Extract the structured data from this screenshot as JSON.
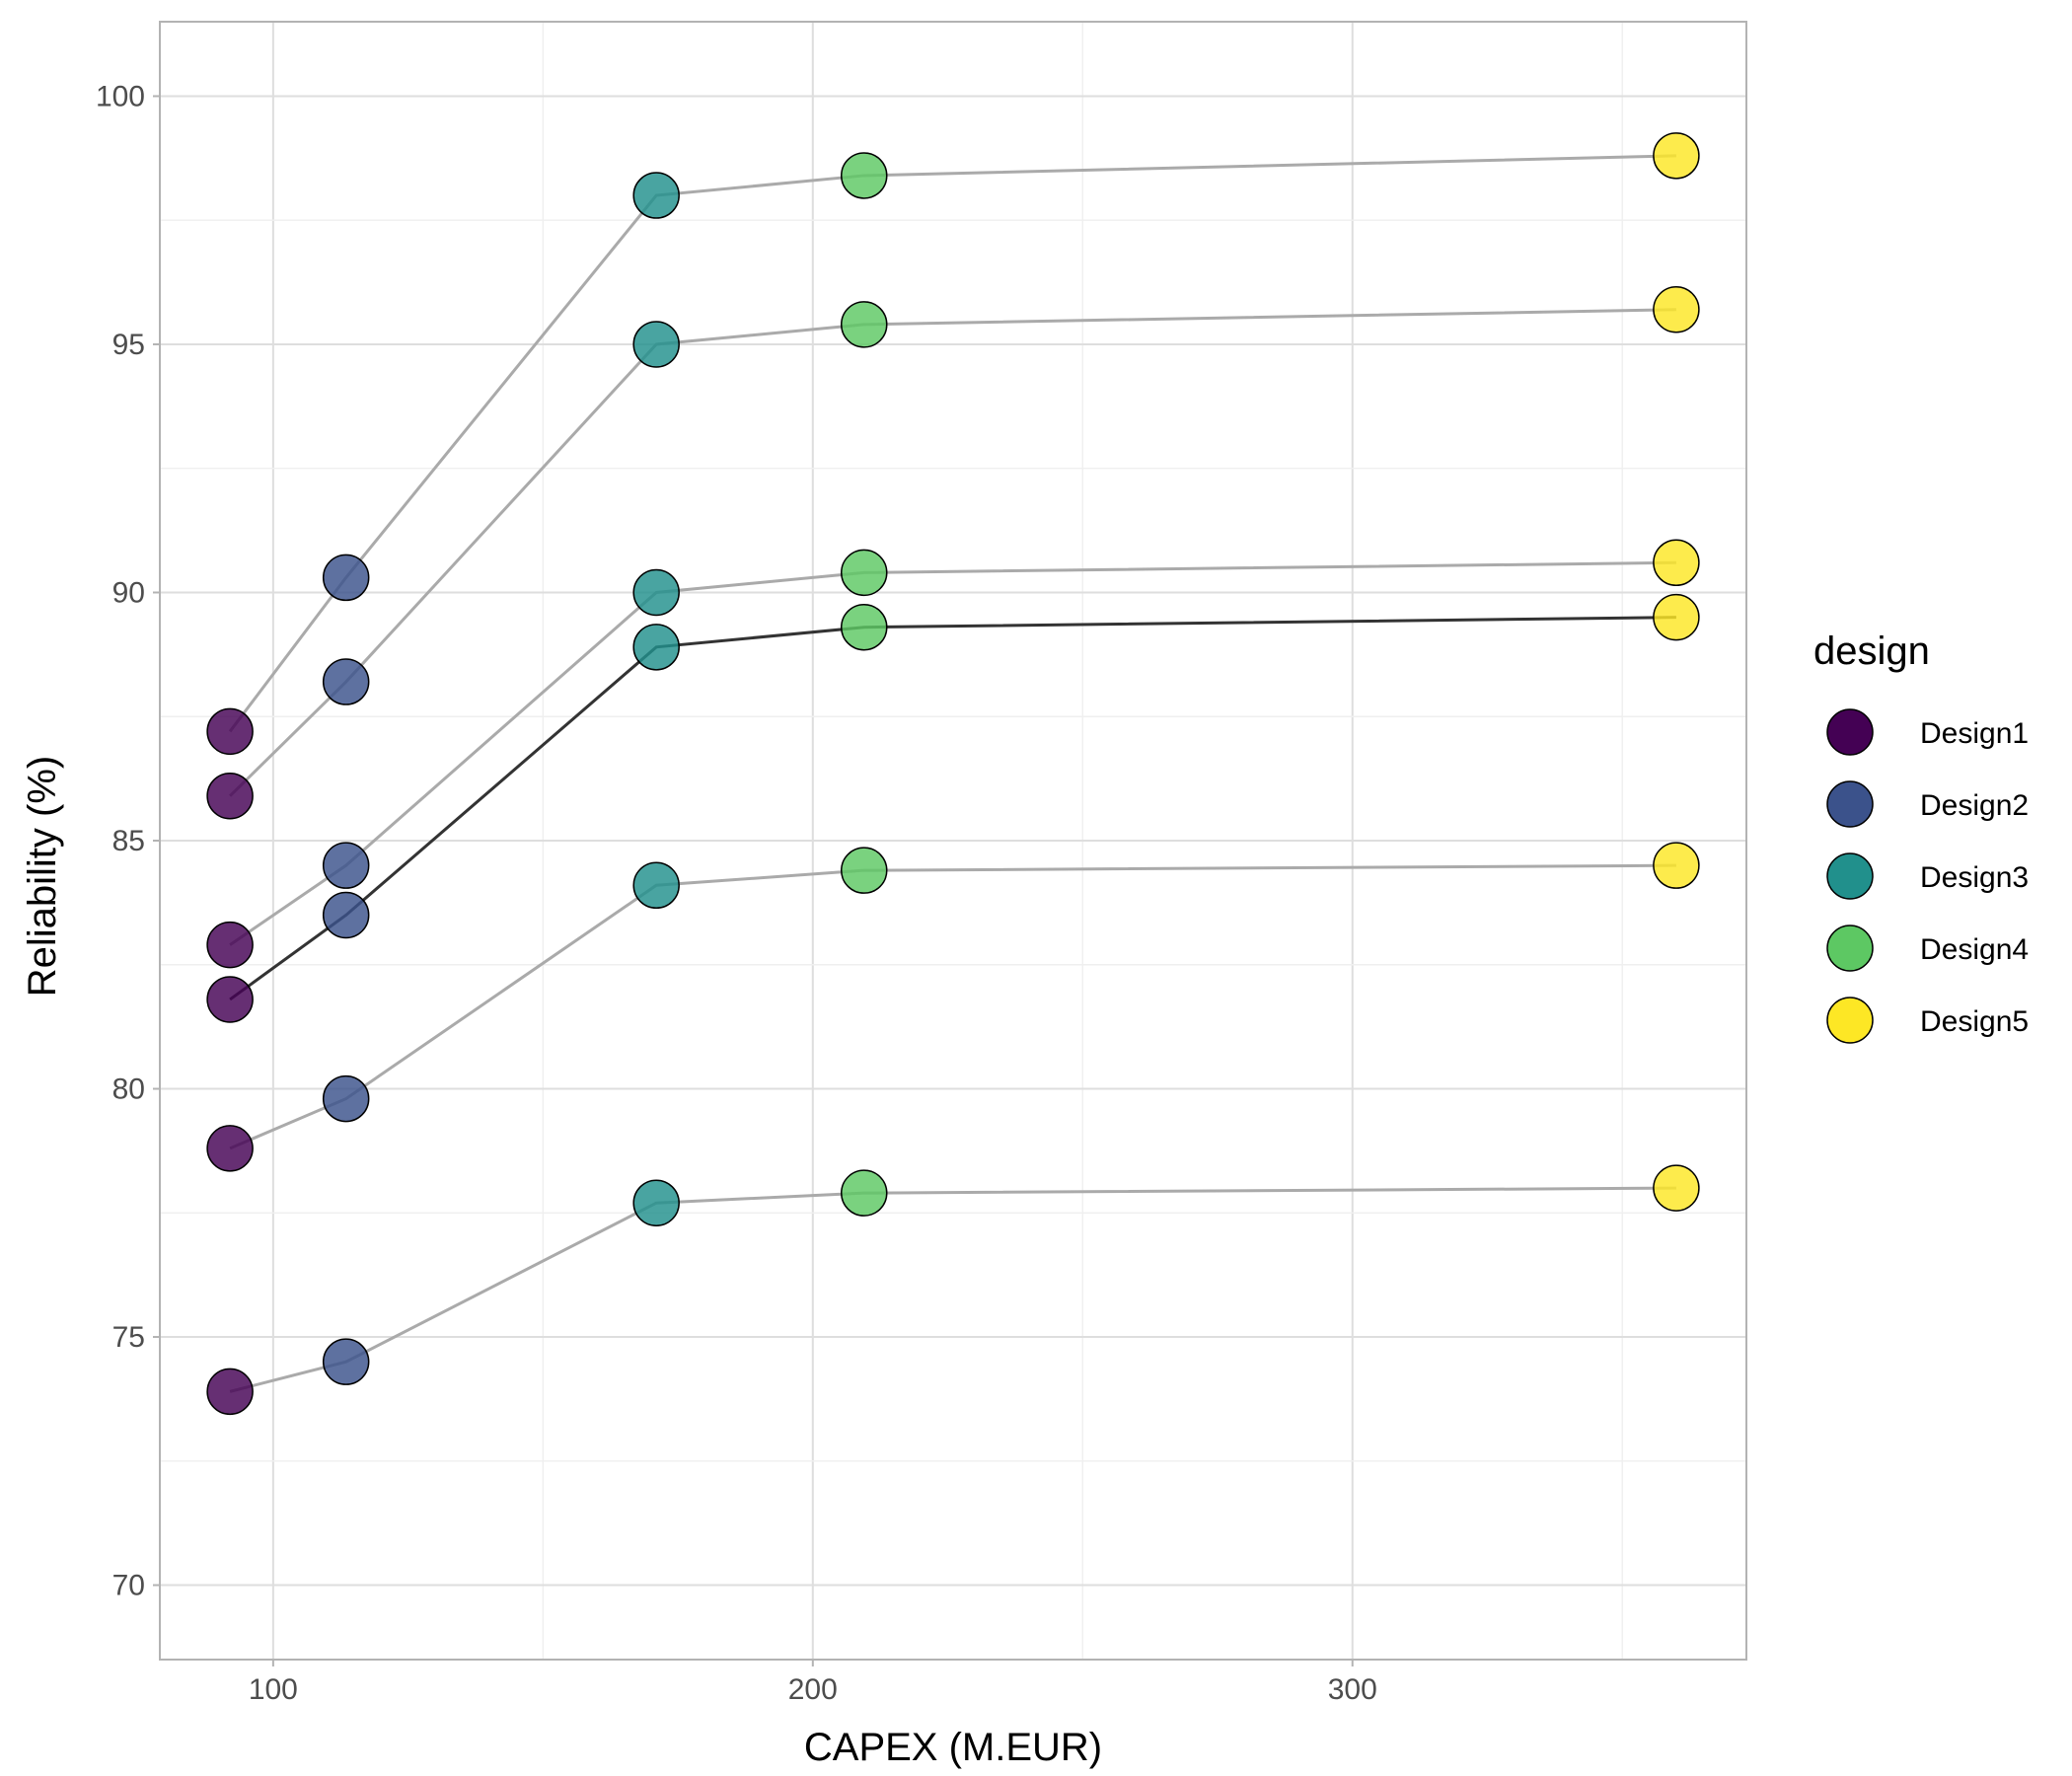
{
  "chart_data": {
    "type": "scatter",
    "xlabel": "CAPEX (M.EUR)",
    "ylabel": "Reliability (%)",
    "xlim": [
      79,
      373
    ],
    "ylim": [
      68.5,
      101.5
    ],
    "xticks": [
      100,
      200,
      300
    ],
    "xtick_labels": [
      "100",
      "200",
      "300"
    ],
    "yticks": [
      70,
      75,
      80,
      85,
      90,
      95,
      100
    ],
    "ytick_labels": [
      "70",
      "75",
      "80",
      "85",
      "90",
      "95",
      "100"
    ],
    "grid": true,
    "legend": {
      "title": "design",
      "position": "right",
      "entries": [
        {
          "label": "Design1",
          "color": "#440154"
        },
        {
          "label": "Design2",
          "color": "#3B528B"
        },
        {
          "label": "Design3",
          "color": "#21908C"
        },
        {
          "label": "Design4",
          "color": "#5DC863"
        },
        {
          "label": "Design5",
          "color": "#FDE725"
        }
      ]
    },
    "designs": [
      "Design1",
      "Design2",
      "Design3",
      "Design4",
      "Design5"
    ],
    "x": [
      92,
      113.5,
      171,
      209.5,
      360
    ],
    "series": [
      {
        "values": [
          87.2,
          90.3,
          98.0,
          98.4,
          98.8
        ],
        "line_color": "#aaaaaa"
      },
      {
        "values": [
          85.9,
          88.2,
          95.0,
          95.4,
          95.7
        ],
        "line_color": "#aaaaaa"
      },
      {
        "values": [
          82.9,
          84.5,
          90.0,
          90.4,
          90.6
        ],
        "line_color": "#aaaaaa"
      },
      {
        "values": [
          81.8,
          83.5,
          88.9,
          89.3,
          89.5
        ],
        "line_color": "#333333"
      },
      {
        "values": [
          78.8,
          79.8,
          84.1,
          84.4,
          84.5
        ],
        "line_color": "#aaaaaa"
      },
      {
        "values": [
          73.9,
          74.5,
          77.7,
          77.9,
          78.0
        ],
        "line_color": "#aaaaaa"
      }
    ]
  }
}
